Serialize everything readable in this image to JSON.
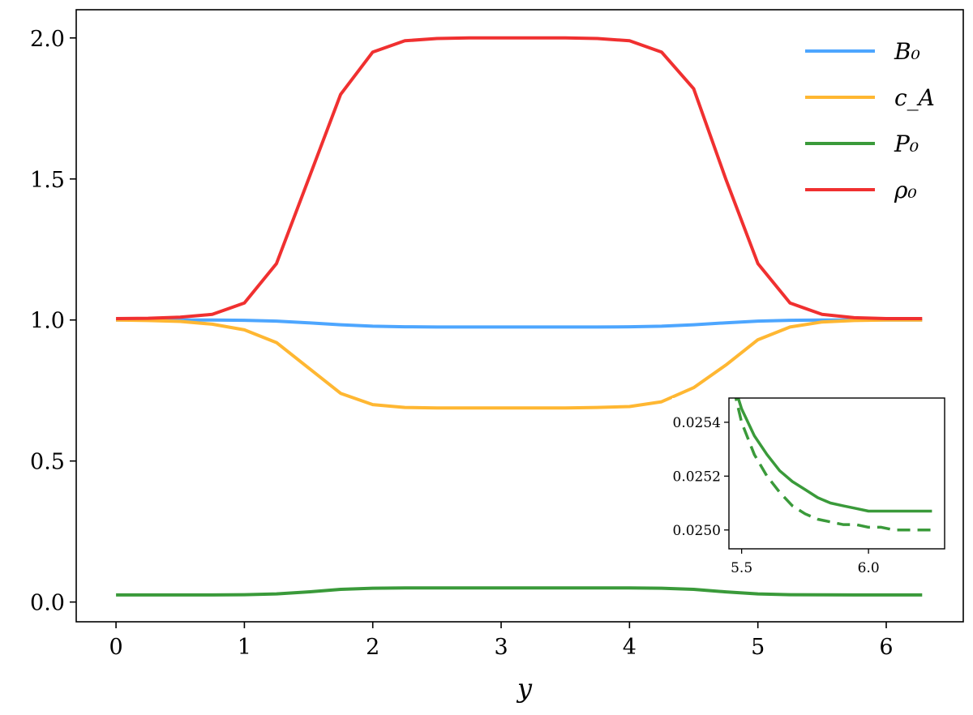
{
  "chart_data": [
    {
      "type": "line",
      "xlabel": "y",
      "ylabel": "",
      "xlim": [
        -0.31,
        6.6
      ],
      "ylim": [
        -0.07,
        2.1
      ],
      "x_ticks": [
        0,
        1,
        2,
        3,
        4,
        5,
        6
      ],
      "x_tick_labels": [
        "0",
        "1",
        "2",
        "3",
        "4",
        "5",
        "6"
      ],
      "y_ticks": [
        0.0,
        0.5,
        1.0,
        1.5,
        2.0
      ],
      "y_tick_labels": [
        "0.0",
        "0.5",
        "1.0",
        "1.5",
        "2.0"
      ],
      "grid": false,
      "legend_position": "top-right",
      "x": [
        0.0,
        0.25,
        0.5,
        0.75,
        1.0,
        1.25,
        1.5,
        1.75,
        2.0,
        2.25,
        2.5,
        2.75,
        3.0,
        3.25,
        3.5,
        3.75,
        4.0,
        4.25,
        4.5,
        4.75,
        5.0,
        5.25,
        5.5,
        5.75,
        6.0,
        6.28
      ],
      "series": [
        {
          "name": "B₀",
          "color": "#4da6ff",
          "style": "solid",
          "values": [
            1.0,
            1.0,
            1.0,
            1.0,
            0.999,
            0.996,
            0.99,
            0.983,
            0.978,
            0.976,
            0.975,
            0.975,
            0.975,
            0.975,
            0.975,
            0.975,
            0.976,
            0.978,
            0.983,
            0.99,
            0.996,
            0.999,
            1.0,
            1.0,
            1.0,
            1.0
          ]
        },
        {
          "name": "c_A",
          "color": "#ffb732",
          "style": "solid",
          "values": [
            1.0,
            0.998,
            0.995,
            0.985,
            0.965,
            0.92,
            0.83,
            0.74,
            0.7,
            0.69,
            0.688,
            0.688,
            0.688,
            0.688,
            0.688,
            0.69,
            0.693,
            0.71,
            0.76,
            0.84,
            0.93,
            0.975,
            0.993,
            0.998,
            1.0,
            1.0
          ]
        },
        {
          "name": "P₀",
          "color": "#3a9a3a",
          "style": "solid",
          "values": [
            0.025,
            0.025,
            0.025,
            0.025,
            0.026,
            0.029,
            0.036,
            0.045,
            0.049,
            0.05,
            0.05,
            0.05,
            0.05,
            0.05,
            0.05,
            0.05,
            0.05,
            0.049,
            0.045,
            0.036,
            0.029,
            0.026,
            0.0255,
            0.0251,
            0.0251,
            0.0251
          ]
        },
        {
          "name": "ρ₀",
          "color": "#f03030",
          "style": "solid",
          "values": [
            1.005,
            1.006,
            1.01,
            1.02,
            1.06,
            1.2,
            1.5,
            1.8,
            1.95,
            1.99,
            1.998,
            2.0,
            2.0,
            2.0,
            2.0,
            1.998,
            1.99,
            1.95,
            1.82,
            1.5,
            1.2,
            1.06,
            1.02,
            1.008,
            1.005,
            1.005
          ]
        }
      ]
    },
    {
      "type": "line",
      "role": "inset",
      "xlim": [
        5.45,
        6.3
      ],
      "ylim": [
        0.02493,
        0.02549
      ],
      "x_ticks": [
        5.5,
        6.0
      ],
      "x_tick_labels": [
        "5.5",
        "6.0"
      ],
      "y_ticks": [
        0.025,
        0.0252,
        0.0254
      ],
      "y_tick_labels": [
        "0.0250",
        "0.0252",
        "0.0254"
      ],
      "x": [
        5.45,
        5.5,
        5.55,
        5.6,
        5.65,
        5.7,
        5.75,
        5.8,
        5.85,
        5.9,
        5.95,
        6.0,
        6.05,
        6.1,
        6.15,
        6.2,
        6.25
      ],
      "series": [
        {
          "color": "#3a9a3a",
          "style": "solid",
          "values": [
            0.0256,
            0.02545,
            0.02535,
            0.02528,
            0.02522,
            0.02518,
            0.02515,
            0.02512,
            0.0251,
            0.02509,
            0.02508,
            0.02507,
            0.02507,
            0.02507,
            0.02507,
            0.02507,
            0.02507
          ]
        },
        {
          "color": "#3a9a3a",
          "style": "dashed",
          "values": [
            0.0256,
            0.0254,
            0.02528,
            0.0252,
            0.02514,
            0.02509,
            0.02506,
            0.02504,
            0.02503,
            0.02502,
            0.02502,
            0.02501,
            0.02501,
            0.025,
            0.025,
            0.025,
            0.025
          ]
        }
      ]
    }
  ]
}
